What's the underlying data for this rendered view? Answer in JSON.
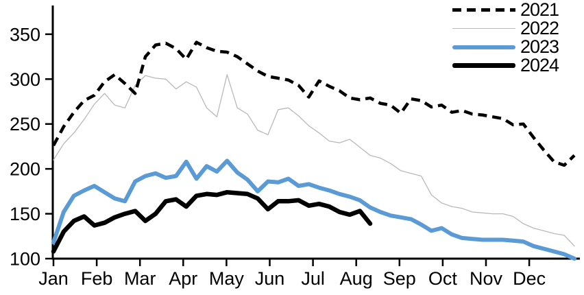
{
  "chart_data": {
    "type": "line",
    "title": "",
    "xlabel": "",
    "ylabel": "",
    "x_frequency": "weekly",
    "x_tick_labels": [
      "Jan",
      "Feb",
      "Mar",
      "Apr",
      "May",
      "Jun",
      "Jul",
      "Aug",
      "Sep",
      "Oct",
      "Nov",
      "Dec"
    ],
    "y_ticks": [
      100,
      150,
      200,
      250,
      300,
      350
    ],
    "y_range": [
      100,
      382
    ],
    "grid": false,
    "legend_position": "top-right",
    "series": [
      {
        "name": "2021",
        "color": "#000000",
        "style": "dashed",
        "width": 4.5,
        "values": [
          226,
          247,
          263,
          276,
          282,
          297,
          305,
          295,
          284,
          325,
          338,
          340,
          334,
          322,
          341,
          335,
          331,
          330,
          325,
          317,
          309,
          303,
          301,
          299,
          293,
          280,
          298,
          292,
          287,
          279,
          277,
          279,
          273,
          271,
          262,
          278,
          276,
          269,
          271,
          263,
          265,
          261,
          260,
          258,
          256,
          249,
          250,
          235,
          221,
          208,
          204,
          215
        ]
      },
      {
        "name": "2022",
        "color": "#b9b9b9",
        "style": "solid",
        "width": 1.3,
        "values": [
          210,
          228,
          240,
          255,
          272,
          284,
          271,
          268,
          293,
          304,
          301,
          300,
          289,
          297,
          291,
          268,
          258,
          305,
          268,
          261,
          243,
          238,
          266,
          268,
          259,
          248,
          240,
          231,
          229,
          233,
          224,
          215,
          212,
          206,
          198,
          195,
          192,
          171,
          162,
          158,
          156,
          152,
          151,
          150,
          150,
          147,
          139,
          134,
          131,
          128,
          126,
          114
        ]
      },
      {
        "name": "2023",
        "color": "#5b9bd5",
        "style": "solid",
        "width": 6,
        "values": [
          118,
          152,
          170,
          176,
          181,
          174,
          167,
          164,
          186,
          192,
          195,
          190,
          192,
          208,
          189,
          203,
          197,
          209,
          196,
          188,
          175,
          186,
          185,
          189,
          181,
          183,
          179,
          176,
          172,
          169,
          165,
          157,
          152,
          148,
          146,
          144,
          138,
          131,
          134,
          127,
          123,
          122,
          121,
          121,
          121,
          120,
          119,
          114,
          111,
          108,
          105,
          100
        ]
      },
      {
        "name": "2024",
        "color": "#000000",
        "style": "solid",
        "width": 6.5,
        "values": [
          108,
          130,
          142,
          147,
          137,
          140,
          146,
          150,
          153,
          142,
          150,
          164,
          166,
          158,
          170,
          172,
          171,
          174,
          173,
          172,
          167,
          155,
          164,
          164,
          165,
          159,
          161,
          158,
          152,
          149,
          153,
          139
        ]
      }
    ]
  }
}
